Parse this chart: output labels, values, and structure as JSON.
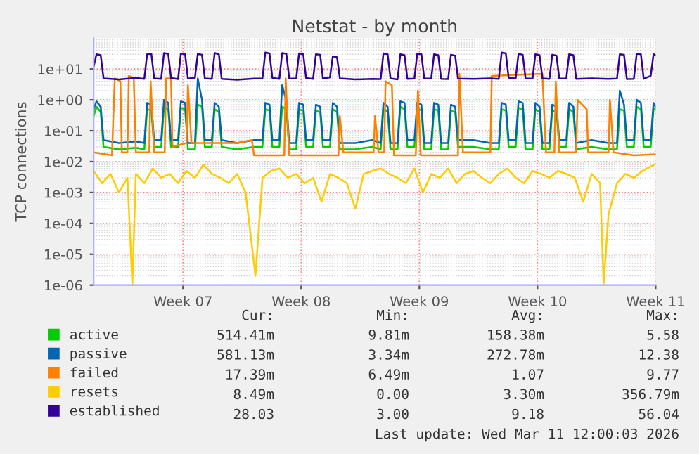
{
  "chart_data": {
    "type": "line",
    "title": "Netstat - by month",
    "ylabel": "TCP connections",
    "log": true,
    "grid": true,
    "legend": "bottom",
    "line_style": "solid",
    "xlim": [
      "2026-02-06T05:00",
      "2026-03-11T12:00"
    ],
    "ylim": [
      1e-06,
      100
    ],
    "xticks": [
      {
        "value": "2026-02-11T12:00",
        "label": "Week 07"
      },
      {
        "value": "2026-02-18T12:00",
        "label": "Week 08"
      },
      {
        "value": "2026-02-25T12:00",
        "label": "Week 09"
      },
      {
        "value": "2026-03-04T12:00",
        "label": "Week 10"
      },
      {
        "value": "2026-03-11T12:00",
        "label": "Week 11"
      }
    ],
    "yticks": [
      {
        "value": 1e-06,
        "label": "1e-06"
      },
      {
        "value": 1e-05,
        "label": "1e-05"
      },
      {
        "value": 0.0001,
        "label": "1e-04"
      },
      {
        "value": 0.001,
        "label": "1e-03"
      },
      {
        "value": 0.01,
        "label": "1e-02"
      },
      {
        "value": 0.1,
        "label": "1e-01"
      },
      {
        "value": 1,
        "label": "1e+00"
      },
      {
        "value": 10,
        "label": "1e+01"
      }
    ],
    "x": [
      "2026-02-06T05:00",
      "2026-02-06T09:00",
      "2026-02-06T15:00",
      "2026-02-06T19:00",
      "2026-02-07T17:00",
      "2026-02-08T17:00",
      "2026-02-09T05:00",
      "2026-02-09T09:00",
      "2026-02-09T15:00",
      "2026-02-09T19:00",
      "2026-02-10T05:00",
      "2026-02-10T09:00",
      "2026-02-10T15:00",
      "2026-02-10T19:00",
      "2026-02-11T05:00",
      "2026-02-11T09:00",
      "2026-02-11T15:00",
      "2026-02-11T19:00",
      "2026-02-12T05:00",
      "2026-02-12T09:00",
      "2026-02-12T15:00",
      "2026-02-12T19:00",
      "2026-02-13T05:00",
      "2026-02-13T09:00",
      "2026-02-13T15:00",
      "2026-02-13T19:00",
      "2026-02-14T17:00",
      "2026-02-15T17:00",
      "2026-02-16T05:00",
      "2026-02-16T09:00",
      "2026-02-16T15:00",
      "2026-02-16T19:00",
      "2026-02-17T05:00",
      "2026-02-17T09:00",
      "2026-02-17T15:00",
      "2026-02-17T19:00",
      "2026-02-18T05:00",
      "2026-02-18T09:00",
      "2026-02-18T15:00",
      "2026-02-18T19:00",
      "2026-02-19T05:00",
      "2026-02-19T09:00",
      "2026-02-19T15:00",
      "2026-02-19T19:00",
      "2026-02-20T05:00",
      "2026-02-20T09:00",
      "2026-02-20T15:00",
      "2026-02-20T19:00",
      "2026-02-21T17:00",
      "2026-02-22T17:00",
      "2026-02-23T05:00",
      "2026-02-23T09:00",
      "2026-02-23T15:00",
      "2026-02-23T19:00",
      "2026-02-24T05:00",
      "2026-02-24T09:00",
      "2026-02-24T15:00",
      "2026-02-24T19:00",
      "2026-02-25T05:00",
      "2026-02-25T09:00",
      "2026-02-25T15:00",
      "2026-02-25T19:00",
      "2026-02-26T05:00",
      "2026-02-26T09:00",
      "2026-02-26T15:00",
      "2026-02-26T19:00",
      "2026-02-27T05:00",
      "2026-02-27T09:00",
      "2026-02-27T15:00",
      "2026-02-27T19:00",
      "2026-02-28T17:00",
      "2026-03-01T17:00",
      "2026-03-02T05:00",
      "2026-03-02T09:00",
      "2026-03-02T15:00",
      "2026-03-02T19:00",
      "2026-03-03T05:00",
      "2026-03-03T09:00",
      "2026-03-03T15:00",
      "2026-03-03T19:00",
      "2026-03-04T05:00",
      "2026-03-04T09:00",
      "2026-03-04T15:00",
      "2026-03-04T19:00",
      "2026-03-05T05:00",
      "2026-03-05T09:00",
      "2026-03-05T15:00",
      "2026-03-05T19:00",
      "2026-03-06T05:00",
      "2026-03-06T09:00",
      "2026-03-06T15:00",
      "2026-03-06T19:00",
      "2026-03-07T17:00",
      "2026-03-08T17:00",
      "2026-03-09T05:00",
      "2026-03-09T09:00",
      "2026-03-09T15:00",
      "2026-03-09T19:00",
      "2026-03-10T05:00",
      "2026-03-10T09:00",
      "2026-03-10T15:00",
      "2026-03-10T19:00",
      "2026-03-11T05:00",
      "2026-03-11T09:00",
      "2026-03-11T12:00"
    ],
    "series": [
      {
        "name": "active",
        "color": "#00cc00",
        "values": [
          0.3,
          0.6,
          0.4,
          0.03,
          0.025,
          0.028,
          0.025,
          0.5,
          0.45,
          0.03,
          0.03,
          0.6,
          0.5,
          0.03,
          0.03,
          0.55,
          0.5,
          0.025,
          0.025,
          0.7,
          0.6,
          0.03,
          0.03,
          0.5,
          0.4,
          0.03,
          0.025,
          0.03,
          0.03,
          0.5,
          0.45,
          0.03,
          0.03,
          0.6,
          0.5,
          0.025,
          0.025,
          0.5,
          0.45,
          0.03,
          0.03,
          0.45,
          0.4,
          0.03,
          0.03,
          0.5,
          0.4,
          0.025,
          0.025,
          0.03,
          0.025,
          0.5,
          0.4,
          0.025,
          0.025,
          0.6,
          0.5,
          0.03,
          0.03,
          0.55,
          0.45,
          0.025,
          0.025,
          0.5,
          0.45,
          0.025,
          0.025,
          0.45,
          0.4,
          0.03,
          0.03,
          0.025,
          0.025,
          0.5,
          0.45,
          0.03,
          0.03,
          0.55,
          0.5,
          0.025,
          0.025,
          0.5,
          0.4,
          0.025,
          0.025,
          0.45,
          0.4,
          0.03,
          0.03,
          0.5,
          0.4,
          0.025,
          0.03,
          0.025,
          0.025,
          0.5,
          0.45,
          0.03,
          0.03,
          0.6,
          0.5,
          0.03,
          0.03,
          0.5,
          0.514
        ]
      },
      {
        "name": "passive",
        "color": "#0066b3",
        "values": [
          0.5,
          0.9,
          0.6,
          0.05,
          0.04,
          0.045,
          0.04,
          0.8,
          0.7,
          0.05,
          0.05,
          1.0,
          0.8,
          0.05,
          0.05,
          0.9,
          0.8,
          0.04,
          0.04,
          5.0,
          1.0,
          0.05,
          0.05,
          0.8,
          0.6,
          0.05,
          0.04,
          0.05,
          0.05,
          0.8,
          0.7,
          0.05,
          0.05,
          3.0,
          0.9,
          0.04,
          0.04,
          0.8,
          0.7,
          0.05,
          0.05,
          0.7,
          0.6,
          0.05,
          0.05,
          0.8,
          0.6,
          0.04,
          0.04,
          0.05,
          0.04,
          0.8,
          0.6,
          0.04,
          0.04,
          0.9,
          0.8,
          0.05,
          0.05,
          0.8,
          0.7,
          0.04,
          0.04,
          0.8,
          0.7,
          0.04,
          0.04,
          0.7,
          0.6,
          0.05,
          0.05,
          0.04,
          0.04,
          0.8,
          0.7,
          0.05,
          0.05,
          0.9,
          0.8,
          0.04,
          0.04,
          0.8,
          0.6,
          0.04,
          0.04,
          0.7,
          0.6,
          0.05,
          0.05,
          0.8,
          0.6,
          0.04,
          0.05,
          0.04,
          0.04,
          2.0,
          0.7,
          0.05,
          0.05,
          1.0,
          0.8,
          0.05,
          0.05,
          0.8,
          0.581
        ]
      },
      {
        "name": "failed",
        "color": "#ff8000",
        "x": [
          "2026-02-06T05:00",
          "2026-02-07T07:00",
          "2026-02-07T11:00",
          "2026-02-07T19:00",
          "2026-02-07T21:00",
          "2026-02-08T05:00",
          "2026-02-08T07:00",
          "2026-02-08T14:00",
          "2026-02-08T17:00",
          "2026-02-09T12:00",
          "2026-02-09T14:00",
          "2026-02-09T19:00",
          "2026-02-10T10:00",
          "2026-02-10T12:00",
          "2026-02-10T19:00",
          "2026-02-10T21:00",
          "2026-02-11T17:00",
          "2026-02-11T19:00",
          "2026-02-12T00:00",
          "2026-02-13T17:00",
          "2026-02-14T17:00",
          "2026-02-15T14:00",
          "2026-02-15T17:00",
          "2026-02-16T17:00",
          "2026-02-17T12:00",
          "2026-02-17T14:00",
          "2026-02-17T19:00",
          "2026-02-19T05:00",
          "2026-02-20T17:00",
          "2026-02-20T19:00",
          "2026-02-21T00:00",
          "2026-02-22T19:00",
          "2026-02-22T21:00",
          "2026-02-23T02:00",
          "2026-02-23T10:00",
          "2026-02-23T12:00",
          "2026-02-23T21:00",
          "2026-02-24T00:00",
          "2026-02-25T07:00",
          "2026-02-25T10:00",
          "2026-02-25T14:00",
          "2026-02-27T19:00",
          "2026-02-27T21:00",
          "2026-02-28T02:00",
          "2026-03-01T17:00",
          "2026-03-01T19:00",
          "2026-03-04T19:00",
          "2026-03-05T00:00",
          "2026-03-05T12:00",
          "2026-03-05T14:00",
          "2026-03-05T19:00",
          "2026-03-06T19:00",
          "2026-03-06T21:00",
          "2026-03-07T10:00",
          "2026-03-07T12:00",
          "2026-03-08T17:00",
          "2026-03-08T19:00",
          "2026-03-09T00:00",
          "2026-03-10T05:00",
          "2026-03-11T12:00"
        ],
        "values": [
          0.02,
          0.016,
          5,
          4,
          0.02,
          0.02,
          6,
          5,
          0.02,
          0.02,
          4,
          0.02,
          0.02,
          5,
          5,
          0.03,
          0.04,
          3,
          0.04,
          0.04,
          0.04,
          0.05,
          0.016,
          0.016,
          0.016,
          5,
          0.016,
          0.016,
          0.016,
          0.3,
          0.02,
          0.02,
          0.3,
          0.02,
          0.02,
          4,
          3,
          0.016,
          0.016,
          2,
          0.016,
          0.016,
          7,
          0.02,
          0.02,
          6,
          7,
          0.02,
          0.02,
          4,
          0.02,
          0.02,
          1,
          0.5,
          0.02,
          0.02,
          1,
          0.02,
          0.016,
          0.0174
        ]
      },
      {
        "name": "resets",
        "color": "#ffcc00",
        "x": [
          "2026-02-06T05:00",
          "2026-02-06T17:00",
          "2026-02-07T05:00",
          "2026-02-07T17:00",
          "2026-02-08T05:00",
          "2026-02-08T12:00",
          "2026-02-08T17:00",
          "2026-02-09T05:00",
          "2026-02-09T17:00",
          "2026-02-10T05:00",
          "2026-02-10T17:00",
          "2026-02-11T05:00",
          "2026-02-11T17:00",
          "2026-02-12T05:00",
          "2026-02-12T17:00",
          "2026-02-13T05:00",
          "2026-02-13T17:00",
          "2026-02-14T05:00",
          "2026-02-14T17:00",
          "2026-02-15T05:00",
          "2026-02-15T19:00",
          "2026-02-16T05:00",
          "2026-02-16T17:00",
          "2026-02-17T05:00",
          "2026-02-17T17:00",
          "2026-02-18T05:00",
          "2026-02-18T17:00",
          "2026-02-19T05:00",
          "2026-02-19T17:00",
          "2026-02-20T05:00",
          "2026-02-20T17:00",
          "2026-02-21T05:00",
          "2026-02-21T17:00",
          "2026-02-22T05:00",
          "2026-02-22T17:00",
          "2026-02-23T05:00",
          "2026-02-23T17:00",
          "2026-02-24T05:00",
          "2026-02-24T17:00",
          "2026-02-25T05:00",
          "2026-02-25T17:00",
          "2026-02-26T05:00",
          "2026-02-26T17:00",
          "2026-02-27T05:00",
          "2026-02-27T17:00",
          "2026-02-28T05:00",
          "2026-02-28T17:00",
          "2026-03-01T05:00",
          "2026-03-01T17:00",
          "2026-03-02T05:00",
          "2026-03-02T17:00",
          "2026-03-03T05:00",
          "2026-03-03T17:00",
          "2026-03-04T05:00",
          "2026-03-04T17:00",
          "2026-03-05T05:00",
          "2026-03-05T17:00",
          "2026-03-06T05:00",
          "2026-03-06T17:00",
          "2026-03-07T05:00",
          "2026-03-07T17:00",
          "2026-03-08T05:00",
          "2026-03-08T10:00",
          "2026-03-08T17:00",
          "2026-03-09T05:00",
          "2026-03-09T17:00",
          "2026-03-10T05:00",
          "2026-03-10T17:00",
          "2026-03-11T12:00"
        ],
        "values": [
          0.005,
          0.002,
          0.004,
          0.001,
          0.003,
          1.1e-06,
          0.004,
          0.002,
          0.006,
          0.003,
          0.004,
          0.002,
          0.005,
          0.003,
          0.008,
          0.004,
          0.003,
          0.002,
          0.004,
          0.001,
          2e-06,
          0.003,
          0.005,
          0.006,
          0.003,
          0.004,
          0.002,
          0.003,
          0.0005,
          0.004,
          0.003,
          0.002,
          0.0003,
          0.004,
          0.005,
          0.006,
          0.004,
          0.003,
          0.002,
          0.006,
          0.001,
          0.004,
          0.003,
          0.006,
          0.002,
          0.004,
          0.005,
          0.003,
          0.002,
          0.004,
          0.006,
          0.003,
          0.002,
          0.005,
          0.004,
          0.003,
          0.005,
          0.004,
          0.003,
          0.0005,
          0.004,
          0.002,
          1.1e-06,
          0.0002,
          0.002,
          0.004,
          0.003,
          0.005,
          0.0085
        ]
      },
      {
        "name": "established",
        "color": "#330099",
        "values": [
          12,
          30,
          28,
          5.0,
          4.6,
          5.2,
          4.8,
          30,
          31,
          5.0,
          4.8,
          33,
          31,
          5.1,
          4.7,
          32,
          30,
          4.9,
          5.2,
          31,
          29,
          5.0,
          4.8,
          33,
          30,
          4.8,
          4.5,
          4.9,
          5.0,
          34,
          32,
          5.2,
          4.8,
          33,
          31,
          5.0,
          4.9,
          32,
          30,
          5.1,
          4.8,
          30,
          29,
          4.9,
          5.4,
          26,
          24,
          5.0,
          4.6,
          4.8,
          4.7,
          32,
          30,
          5.0,
          4.6,
          30,
          28,
          4.8,
          4.9,
          31,
          30,
          4.9,
          5.0,
          30,
          28,
          4.8,
          4.7,
          29,
          27,
          4.9,
          4.8,
          5.0,
          4.8,
          34,
          32,
          5.2,
          5.0,
          31,
          29,
          5.0,
          4.9,
          30,
          28,
          5.0,
          4.8,
          29,
          27,
          4.9,
          5.0,
          30,
          28,
          4.8,
          5.0,
          4.8,
          4.9,
          30,
          29,
          4.7,
          4.8,
          31,
          30,
          4.8,
          6,
          30,
          28.03
        ]
      }
    ],
    "annotations": [
      "Cur:",
      "Min:",
      "Avg:",
      "Max:",
      "514.41m",
      "9.81m",
      "158.38m",
      "5.58",
      "581.13m",
      "3.34m",
      "272.78m",
      "12.38",
      "17.39m",
      "6.49m",
      "1.07",
      "9.77",
      "8.49m",
      "0.00",
      "3.30m",
      "356.79m",
      "28.03",
      "3.00",
      "9.18",
      "56.04",
      "Last update: Wed Mar 11 12:00:03 2026"
    ]
  }
}
